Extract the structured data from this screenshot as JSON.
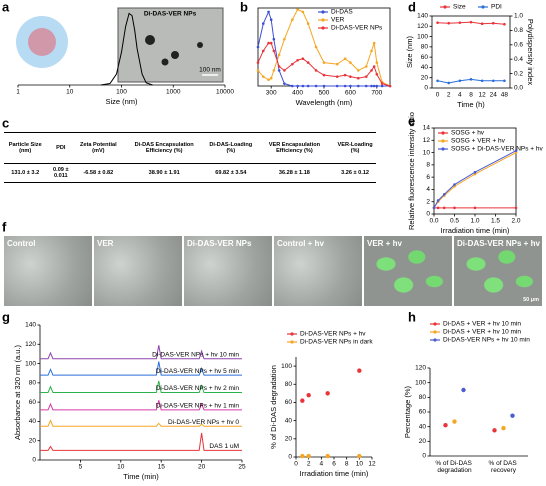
{
  "chart_data": [
    {
      "panel": "a",
      "type": "line",
      "frame": "bottom",
      "x_label": "Size (nm)",
      "x_log": true,
      "xlim": [
        1,
        10000
      ],
      "xticks": [
        1,
        10,
        100,
        1000,
        10000
      ],
      "ylim": [
        0,
        1
      ],
      "x": [
        40,
        60,
        80,
        100,
        120,
        140,
        160,
        180,
        200,
        250,
        300,
        400
      ],
      "series": [
        {
          "color": "#000000",
          "values": [
            0,
            0.02,
            0.15,
            0.45,
            0.8,
            0.98,
            0.95,
            0.75,
            0.5,
            0.15,
            0.03,
            0
          ]
        }
      ],
      "inset_label": "Di-DAS-VER NPs",
      "scale_bar": "100 nm"
    },
    {
      "panel": "b",
      "type": "line",
      "frame": "box",
      "x_label": "Wavelength (nm)",
      "xlim": [
        250,
        750
      ],
      "xticks": [
        300,
        400,
        500,
        600,
        700
      ],
      "ylim": [
        0,
        1
      ],
      "legend": "upper right",
      "marker": true,
      "x": [
        250,
        270,
        290,
        300,
        310,
        330,
        350,
        380,
        400,
        420,
        440,
        470,
        500,
        550,
        580,
        600,
        630,
        660,
        680,
        690,
        700,
        720,
        750
      ],
      "series": [
        {
          "name": "Di-DAS",
          "color": "#3b4fd6",
          "values": [
            0.5,
            0.8,
            0.95,
            0.85,
            0.6,
            0.2,
            0.03,
            0,
            0,
            0,
            0,
            0,
            0,
            0,
            0,
            0,
            0,
            0,
            0,
            0,
            0,
            0,
            0
          ]
        },
        {
          "name": "VER",
          "color": "#f5a623",
          "values": [
            0.2,
            0.12,
            0.08,
            0.1,
            0.2,
            0.4,
            0.6,
            0.85,
            0.98,
            0.95,
            0.8,
            0.5,
            0.3,
            0.28,
            0.35,
            0.3,
            0.2,
            0.25,
            0.45,
            0.55,
            0.3,
            0.05,
            0
          ]
        },
        {
          "name": "Di-DAS-VER NPs",
          "color": "#e8343a",
          "values": [
            0.3,
            0.45,
            0.55,
            0.55,
            0.45,
            0.25,
            0.2,
            0.28,
            0.33,
            0.35,
            0.3,
            0.2,
            0.14,
            0.12,
            0.14,
            0.12,
            0.1,
            0.12,
            0.2,
            0.25,
            0.15,
            0.03,
            0
          ]
        }
      ]
    },
    {
      "panel": "d",
      "type": "line",
      "frame": "box",
      "x_label": "Time (h)",
      "y_label": "Size (nm)",
      "y2_label": "Polydispersity index",
      "legend": "top",
      "marker": true,
      "categories": [
        "0",
        "2",
        "4",
        "8",
        "12",
        "24",
        "48"
      ],
      "ylim": [
        0,
        140
      ],
      "yticks": [
        0,
        20,
        40,
        60,
        80,
        100,
        120,
        140
      ],
      "y2lim": [
        0,
        1
      ],
      "y2ticks": [
        {
          "value": 0,
          "label": "0.0"
        },
        0.2,
        0.4,
        0.6,
        0.8,
        {
          "value": 1,
          "label": "1.0"
        }
      ],
      "series": [
        {
          "name": "Size",
          "color": "#e8343a",
          "values": [
            127,
            126,
            127,
            128,
            125,
            126,
            124
          ]
        },
        {
          "name": "PDI",
          "color": "#2a6fdb",
          "axis": "y2",
          "values": [
            0.1,
            0.07,
            0.1,
            0.12,
            0.1,
            0.1,
            0.1
          ]
        }
      ]
    },
    {
      "panel": "e",
      "type": "line",
      "frame": "box",
      "x_label": "Irradiation time (min)",
      "y_label": "Relative fluorescence intensity ratio",
      "legend": "upper left",
      "marker": true,
      "x": [
        0,
        0.1,
        0.25,
        0.5,
        1,
        2
      ],
      "xlim": [
        0,
        2
      ],
      "xticks": [
        {
          "value": 0,
          "label": "0.0"
        },
        0.5,
        {
          "value": 1,
          "label": "1.0"
        },
        1.5,
        {
          "value": 2,
          "label": "2.0"
        }
      ],
      "ylim": [
        0,
        14
      ],
      "yticks": [
        0,
        2,
        4,
        6,
        8,
        10,
        12,
        14
      ],
      "series": [
        {
          "name": "SOSG + hv",
          "color": "#e8343a",
          "values": [
            1,
            1,
            1,
            1,
            1,
            1
          ]
        },
        {
          "name": "SOSG + VER + hv",
          "color": "#f5a623",
          "values": [
            1,
            2,
            3,
            4.5,
            6.5,
            10
          ]
        },
        {
          "name": "SOSG + Di-DAS-VER NPs + hv",
          "color": "#4a5bd4",
          "values": [
            1,
            2.2,
            3.2,
            4.8,
            6.8,
            10.3
          ]
        }
      ]
    },
    {
      "panel": "g",
      "type": "line",
      "frame": "axes",
      "x_label": "Time (min)",
      "y_label": "Absorbance at 320 nm (a.u.)",
      "legend": "inline",
      "x": [
        0,
        1,
        1.3,
        1.6,
        14.4,
        14.7,
        15,
        19.7,
        20,
        20.3,
        25
      ],
      "xlim": [
        0,
        25
      ],
      "xticks": [
        5,
        10,
        15,
        20,
        25
      ],
      "ylim": [
        0,
        140
      ],
      "yticks": [
        0,
        20,
        40,
        60,
        80,
        100,
        120,
        140
      ],
      "series": [
        {
          "name": "Di-DAS-VER NPs + hv 10 min",
          "color": "#8e44ad",
          "values": [
            105,
            105,
            111,
            105,
            105,
            119,
            105,
            105,
            113,
            105,
            105
          ]
        },
        {
          "name": "Di-DAS-VER NPs + hv 5 min",
          "color": "#2a6fdb",
          "values": [
            88,
            88,
            94,
            88,
            88,
            102,
            88,
            88,
            95,
            88,
            88
          ]
        },
        {
          "name": "Di-DAS-VER NPs + hv 2 min",
          "color": "#2bb24c",
          "values": [
            70,
            70,
            76,
            70,
            70,
            82,
            70,
            70,
            77,
            70,
            70
          ]
        },
        {
          "name": "Di-DAS-VER NPs + hv 1 min",
          "color": "#d63aa8",
          "values": [
            52,
            52,
            58,
            52,
            52,
            62,
            52,
            52,
            58,
            52,
            52
          ]
        },
        {
          "name": "Di-DAS-VER NPs + hv 0",
          "color": "#f5a623",
          "values": [
            35,
            35,
            41,
            35,
            35,
            38,
            35,
            35,
            37,
            35,
            35
          ]
        },
        {
          "name": "DAS 1 uM",
          "color": "#e8343a",
          "values": [
            10,
            10,
            14,
            10,
            10,
            10,
            10,
            10,
            28,
            10,
            10
          ]
        }
      ]
    },
    {
      "type": "scatter",
      "frame": "axes",
      "x_label": "Irradiation time (min)",
      "y_label": "% of Di-DAS degradation",
      "legend": "upper left",
      "xlim": [
        0,
        12
      ],
      "xticks": [
        0,
        2,
        4,
        6,
        8,
        10,
        12
      ],
      "ylim": [
        0,
        110
      ],
      "yticks": [
        0,
        20,
        40,
        60,
        80,
        100
      ],
      "series": [
        {
          "name": "Di-DAS-VER NPs + hv",
          "color": "#e8343a",
          "x": [
            1,
            2,
            5,
            10
          ],
          "values": [
            62,
            68,
            70,
            95
          ]
        },
        {
          "name": "Di-DAS-VER NPs in dark",
          "color": "#f5a623",
          "x": [
            1,
            2,
            5,
            10
          ],
          "values": [
            1,
            1,
            1,
            1
          ]
        }
      ]
    },
    {
      "panel": "h",
      "type": "scatter",
      "frame": "axes",
      "y_label": "Percentage (%)",
      "legend": "upper left",
      "categories": [
        "% of Di-DAS degradation",
        "% of DAS recovery"
      ],
      "ylim": [
        0,
        120
      ],
      "yticks": [
        0,
        20,
        40,
        60,
        80,
        100,
        120
      ],
      "series": [
        {
          "name": "Di-DAS + VER + hv 10 min",
          "color": "#e8343a",
          "values": [
            42,
            35
          ]
        },
        {
          "name": "Di-DAS + VER + hv 10 min",
          "color": "#f5a623",
          "values": [
            47,
            38
          ]
        },
        {
          "name": "Di-DAS-VER NPs + hv 10 min",
          "color": "#4a5bd4",
          "values": [
            90,
            55
          ]
        }
      ]
    }
  ],
  "table": {
    "panel": "c",
    "columns": [
      "Particle Size (nm)",
      "PDI",
      "Zeta Potential (mV)",
      "Di-DAS Encapsulation Efficiency (%)",
      "Di-DAS-Loading (%)",
      "VER Encapsulation Efficiency (%)",
      "VER-Loading (%)"
    ],
    "rows": [
      [
        "131.0 ± 3.2",
        "0.09 ± 0.011",
        "-6.58 ± 0.82",
        "38.90 ± 1.91",
        "69.82 ± 3.54",
        "36.28 ± 1.18",
        "3.26 ± 0.12"
      ]
    ]
  },
  "micrographs": {
    "panel": "f",
    "labels": [
      "Control",
      "VER",
      "Di-DAS-VER NPs",
      "Control + hv",
      "VER + hv",
      "Di-DAS-VER NPs + hv"
    ],
    "scale_bar": "50 μm"
  }
}
